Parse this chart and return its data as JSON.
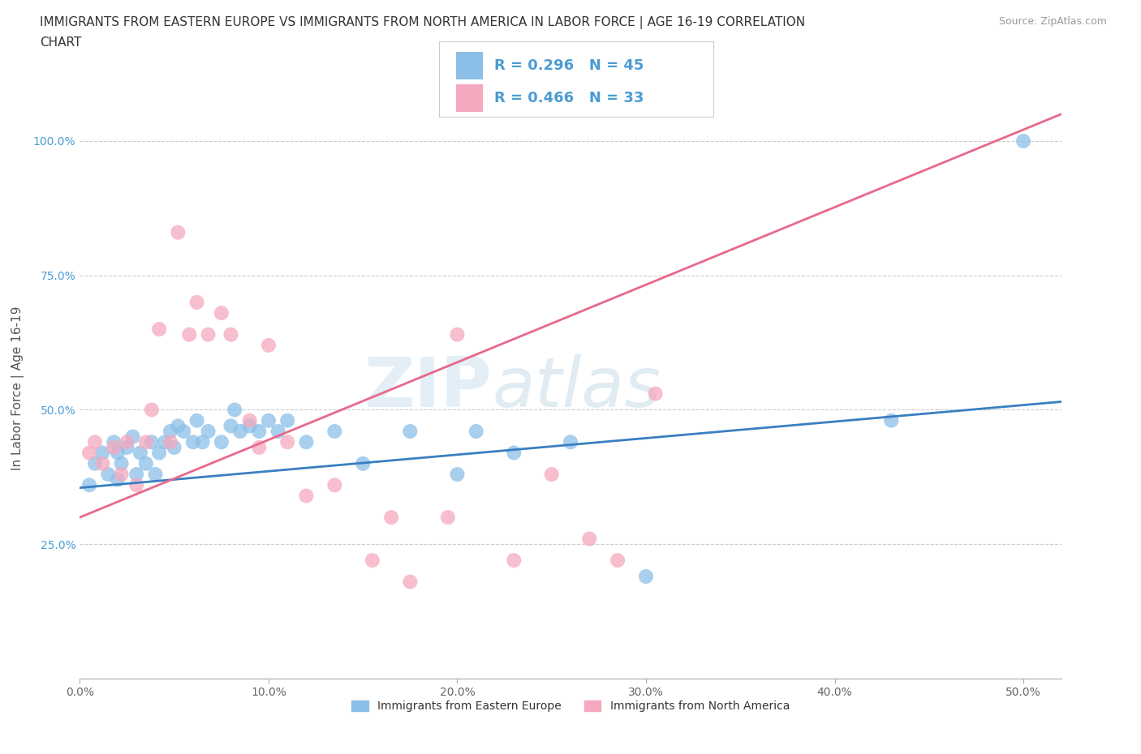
{
  "title_line1": "IMMIGRANTS FROM EASTERN EUROPE VS IMMIGRANTS FROM NORTH AMERICA IN LABOR FORCE | AGE 16-19 CORRELATION",
  "title_line2": "CHART",
  "source_text": "Source: ZipAtlas.com",
  "ylabel": "In Labor Force | Age 16-19",
  "xlim": [
    0.0,
    0.52
  ],
  "ylim": [
    0.0,
    1.08
  ],
  "xtick_labels": [
    "0.0%",
    "10.0%",
    "20.0%",
    "30.0%",
    "40.0%",
    "50.0%"
  ],
  "xtick_values": [
    0.0,
    0.1,
    0.2,
    0.3,
    0.4,
    0.5
  ],
  "ytick_labels": [
    "25.0%",
    "50.0%",
    "75.0%",
    "100.0%"
  ],
  "ytick_values": [
    0.25,
    0.5,
    0.75,
    1.0
  ],
  "legend_r1": "R = 0.296",
  "legend_n1": "N = 45",
  "legend_r2": "R = 0.466",
  "legend_n2": "N = 33",
  "color_blue": "#8BBFE8",
  "color_pink": "#F5A8BE",
  "color_blue_line": "#3A7FC1",
  "color_pink_line": "#E8688A",
  "color_blue_text": "#4B9CD3",
  "watermark_text": "ZIPatlas",
  "blue_scatter_x": [
    0.005,
    0.008,
    0.012,
    0.015,
    0.018,
    0.02,
    0.02,
    0.022,
    0.025,
    0.028,
    0.03,
    0.032,
    0.035,
    0.038,
    0.04,
    0.042,
    0.045,
    0.048,
    0.05,
    0.052,
    0.055,
    0.06,
    0.062,
    0.065,
    0.068,
    0.075,
    0.08,
    0.082,
    0.085,
    0.09,
    0.095,
    0.1,
    0.105,
    0.11,
    0.12,
    0.135,
    0.15,
    0.175,
    0.2,
    0.21,
    0.23,
    0.26,
    0.3,
    0.43,
    0.5
  ],
  "blue_scatter_y": [
    0.36,
    0.4,
    0.42,
    0.38,
    0.44,
    0.37,
    0.42,
    0.4,
    0.43,
    0.45,
    0.38,
    0.42,
    0.4,
    0.44,
    0.38,
    0.42,
    0.44,
    0.46,
    0.43,
    0.47,
    0.46,
    0.44,
    0.48,
    0.44,
    0.46,
    0.44,
    0.47,
    0.5,
    0.46,
    0.47,
    0.46,
    0.48,
    0.46,
    0.48,
    0.44,
    0.46,
    0.4,
    0.46,
    0.38,
    0.46,
    0.42,
    0.44,
    0.19,
    0.48,
    1.0
  ],
  "pink_scatter_x": [
    0.005,
    0.008,
    0.012,
    0.018,
    0.022,
    0.025,
    0.03,
    0.035,
    0.038,
    0.042,
    0.048,
    0.052,
    0.058,
    0.062,
    0.068,
    0.075,
    0.08,
    0.09,
    0.095,
    0.1,
    0.11,
    0.12,
    0.135,
    0.155,
    0.165,
    0.175,
    0.195,
    0.2,
    0.23,
    0.25,
    0.27,
    0.285,
    0.305
  ],
  "pink_scatter_y": [
    0.42,
    0.44,
    0.4,
    0.43,
    0.38,
    0.44,
    0.36,
    0.44,
    0.5,
    0.65,
    0.44,
    0.83,
    0.64,
    0.7,
    0.64,
    0.68,
    0.64,
    0.48,
    0.43,
    0.62,
    0.44,
    0.34,
    0.36,
    0.22,
    0.3,
    0.18,
    0.3,
    0.64,
    0.22,
    0.38,
    0.26,
    0.22,
    0.53
  ],
  "blue_trend_x": [
    0.0,
    0.52
  ],
  "blue_trend_y": [
    0.355,
    0.515
  ],
  "pink_trend_x": [
    0.0,
    0.52
  ],
  "pink_trend_y": [
    0.3,
    1.05
  ],
  "bg_color": "#ffffff",
  "grid_color": "#cccccc",
  "title_fontsize": 11,
  "axis_label_fontsize": 11,
  "tick_fontsize": 10,
  "marker_size": 13
}
